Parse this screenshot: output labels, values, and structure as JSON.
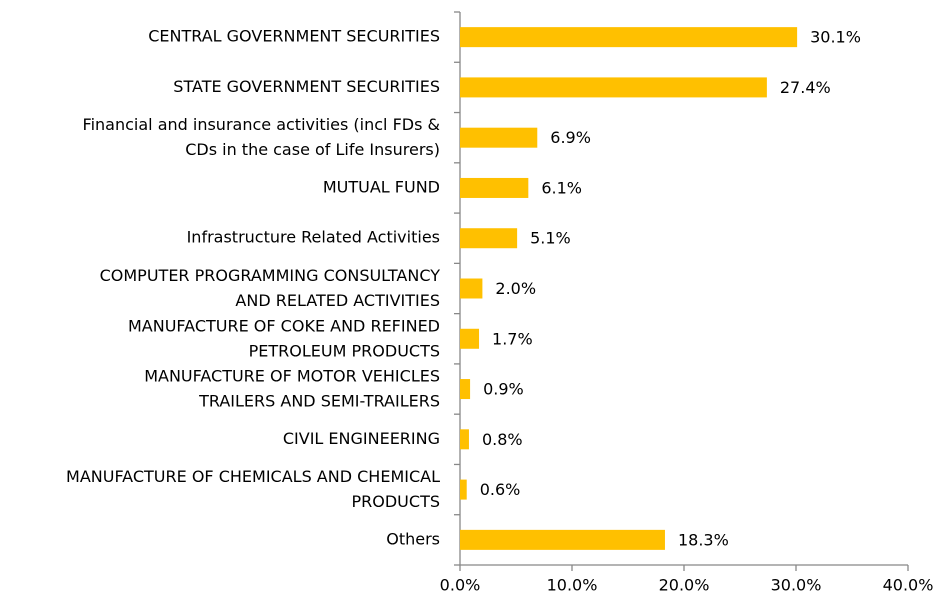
{
  "chart_data": {
    "type": "bar",
    "orientation": "horizontal",
    "categories": [
      "CENTRAL GOVERNMENT SECURITIES",
      "STATE GOVERNMENT SECURITIES",
      "Financial and insurance activities (incl FDs &\nCDs in the case of Life Insurers)",
      "MUTUAL FUND",
      "Infrastructure Related Activities",
      "COMPUTER PROGRAMMING  CONSULTANCY\nAND RELATED ACTIVITIES",
      "MANUFACTURE OF COKE AND REFINED\nPETROLEUM PRODUCTS",
      "MANUFACTURE OF MOTOR VEHICLES\nTRAILERS AND SEMI-TRAILERS",
      "CIVIL ENGINEERING",
      "MANUFACTURE OF CHEMICALS AND CHEMICAL\nPRODUCTS",
      "Others"
    ],
    "values": [
      30.1,
      27.4,
      6.9,
      6.1,
      5.1,
      2.0,
      1.7,
      0.9,
      0.8,
      0.6,
      18.3
    ],
    "value_labels": [
      "30.1%",
      "27.4%",
      "6.9%",
      "6.1%",
      "5.1%",
      "2.0%",
      "1.7%",
      "0.9%",
      "0.8%",
      "0.6%",
      "18.3%"
    ],
    "color": "#ffc000",
    "xlim": [
      0,
      40
    ],
    "xticks": [
      {
        "value": 0,
        "label": "0.0%"
      },
      {
        "value": 10,
        "label": "10.0%"
      },
      {
        "value": 20,
        "label": "20.0%"
      },
      {
        "value": 30,
        "label": "30.0%"
      },
      {
        "value": 40,
        "label": "40.0%"
      }
    ],
    "grid": false
  }
}
